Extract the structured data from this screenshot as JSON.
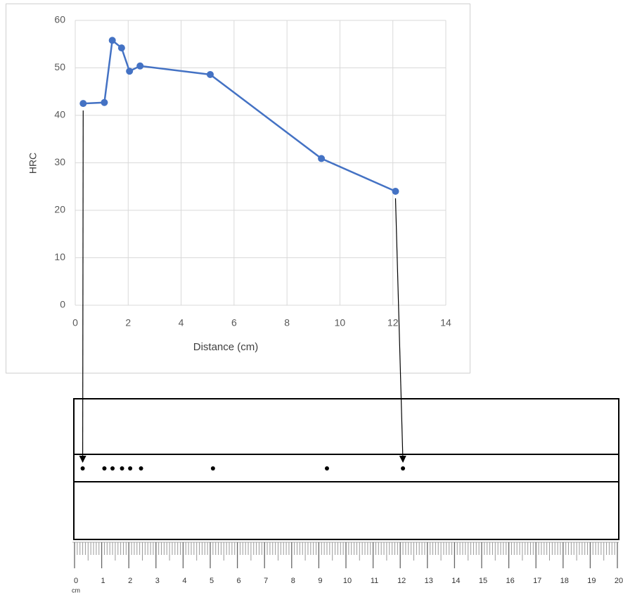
{
  "chart_data": {
    "type": "line",
    "x_label": "Distance (cm)",
    "y_label": "HRC",
    "x": [
      0.3,
      1.1,
      1.4,
      1.75,
      2.05,
      2.45,
      5.1,
      9.3,
      12.1
    ],
    "series": [
      {
        "color": "#4472c4",
        "values": [
          42.5,
          42.7,
          55.8,
          54.2,
          49.3,
          50.4,
          48.6,
          30.9,
          24.0
        ]
      }
    ],
    "xlim": [
      0,
      14
    ],
    "xticks": [
      0,
      2,
      4,
      6,
      8,
      10,
      12,
      14
    ],
    "ylim": [
      0,
      60
    ],
    "yticks": [
      0,
      10,
      20,
      30,
      40,
      50,
      60
    ],
    "grid": true
  },
  "ruler": {
    "ticks": [
      0,
      1,
      2,
      3,
      4,
      5,
      6,
      7,
      8,
      9,
      10,
      11,
      12,
      13,
      14,
      15,
      16,
      17,
      18,
      19,
      20
    ],
    "unit": "cm"
  }
}
